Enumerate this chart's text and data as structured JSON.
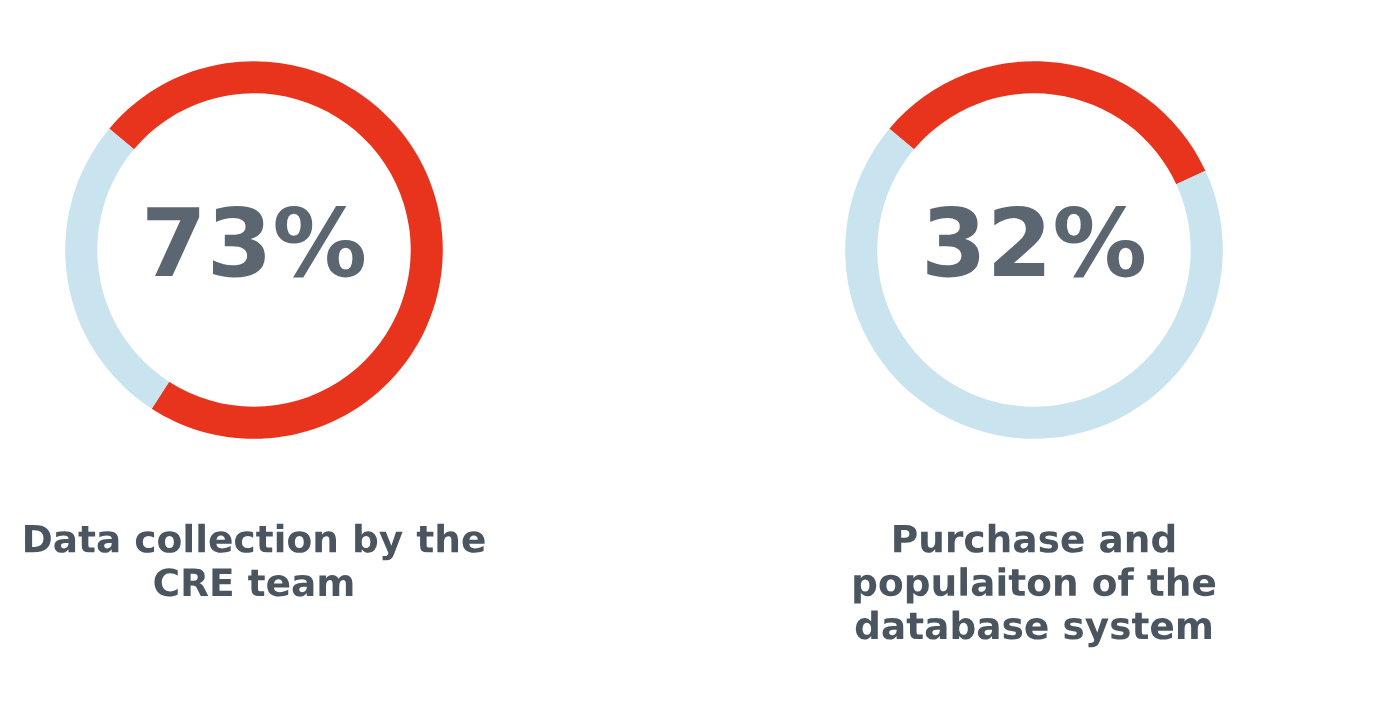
{
  "chart_data": [
    {
      "type": "donut",
      "title": "Data collection by the\nCRE team",
      "categories": [
        null,
        null
      ],
      "values": [
        73,
        27
      ],
      "colors": [
        "#e8341c",
        "#c9e4ee"
      ],
      "annotations": [
        "73%"
      ]
    },
    {
      "type": "donut",
      "title": "Purchase and\npopulaiton of the\ndatabase system",
      "categories": [
        null,
        null
      ],
      "values": [
        32,
        68
      ],
      "colors": [
        "#e8341c",
        "#c9e4ee"
      ],
      "annotations": [
        "32%"
      ]
    }
  ]
}
